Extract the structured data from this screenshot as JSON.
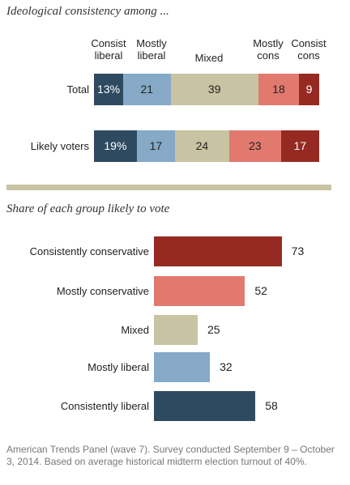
{
  "chart_data": [
    {
      "type": "bar",
      "orientation": "horizontal",
      "stacked": true,
      "title": "Ideological consistency among ...",
      "categories": [
        "Total",
        "Likely voters"
      ],
      "series": [
        {
          "name": "Consist liberal",
          "name_lines": [
            "Consist",
            "liberal"
          ],
          "values": [
            13,
            19
          ],
          "labels": [
            "13%",
            "19%"
          ],
          "color": "#2e4a60"
        },
        {
          "name": "Mostly liberal",
          "name_lines": [
            "Mostly",
            "liberal"
          ],
          "values": [
            21,
            17
          ],
          "labels": [
            "21",
            "17"
          ],
          "color": "#85a9c6"
        },
        {
          "name": "Mixed",
          "name_lines": [
            "Mixed"
          ],
          "values": [
            39,
            24
          ],
          "labels": [
            "39",
            "24"
          ],
          "color": "#c8c3a2"
        },
        {
          "name": "Mostly cons",
          "name_lines": [
            "Mostly",
            "cons"
          ],
          "values": [
            18,
            23
          ],
          "labels": [
            "18",
            "23"
          ],
          "color": "#e2796e"
        },
        {
          "name": "Consist cons",
          "name_lines": [
            "Consist",
            "cons"
          ],
          "values": [
            9,
            17
          ],
          "labels": [
            "9",
            "17"
          ],
          "color": "#962a22"
        }
      ],
      "xlim": [
        0,
        100
      ],
      "legend": "top"
    },
    {
      "type": "bar",
      "orientation": "horizontal",
      "title": "Share of each group likely to vote",
      "categories": [
        "Consistently conservative",
        "Mostly conservative",
        "Mixed",
        "Mostly liberal",
        "Consistently liberal"
      ],
      "values": [
        73,
        52,
        25,
        32,
        58
      ],
      "colors": [
        "#962a22",
        "#e2796e",
        "#c8c3a2",
        "#85a9c6",
        "#2e4a60"
      ],
      "xlim": [
        0,
        100
      ]
    }
  ],
  "note": "American Trends Panel (wave 7). Survey conducted September 9 – October 3, 2014. Based on average historical midterm election turnout of 40%."
}
